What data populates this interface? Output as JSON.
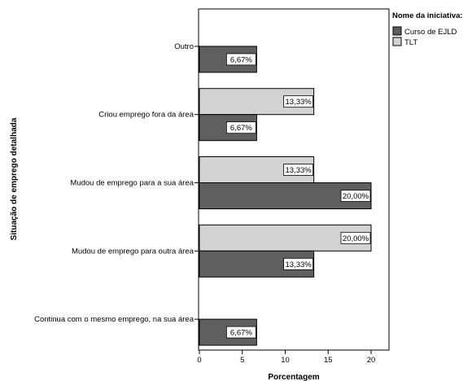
{
  "chart_data": {
    "type": "bar",
    "orientation": "horizontal",
    "categories": [
      "Outro",
      "Criou emprego fora da área",
      "Mudou de emprego para a sua área",
      "Mudou de emprego para outra área",
      "Continua com o mesmo emprego, na sua área"
    ],
    "series": [
      {
        "name": "TLT",
        "color": "#d3d3d3",
        "values": [
          null,
          13.33,
          13.33,
          20,
          null
        ],
        "labels": [
          null,
          "13,33%",
          "13,33%",
          "20,00%",
          null
        ]
      },
      {
        "name": "Curso de EJLD",
        "color": "#5f5f5f",
        "values": [
          6.67,
          6.67,
          20,
          13.33,
          6.67
        ],
        "labels": [
          "6,67%",
          "6,67%",
          "20,00%",
          "13,33%",
          "6,67%"
        ]
      }
    ],
    "xlabel": "Porcentagem",
    "ylabel": "Situação de emprego detalhada",
    "xlim": [
      0,
      22
    ],
    "xticks": [
      0,
      5,
      10,
      15,
      20
    ],
    "grid": false,
    "legend": {
      "title": "Nome da iniciativa:",
      "placement": "top-right",
      "entries": [
        "Curso de EJLD",
        "TLT"
      ]
    }
  }
}
